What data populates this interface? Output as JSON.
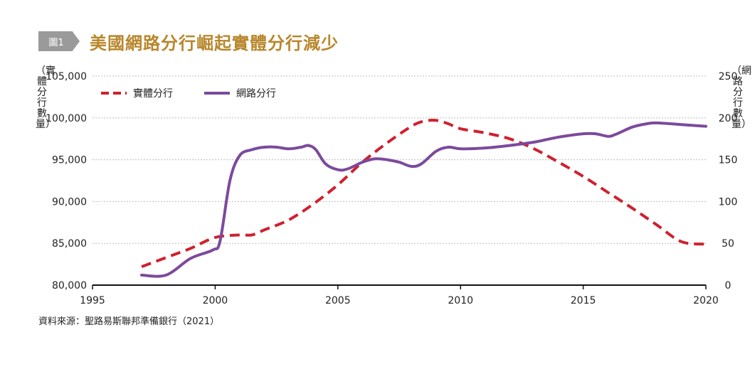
{
  "header": {
    "badge": "圖1",
    "title": "美國網路分行崛起實體分行減少"
  },
  "source": "資料來源：聖路易斯聯邦準備銀行（2021）",
  "chart_data": {
    "type": "line",
    "title": "美國網路分行崛起實體分行減少",
    "ylabel": "（實體分行數量）",
    "y2label": "（網路分行數量）",
    "xlim": [
      1995,
      2020
    ],
    "ylim": [
      80000,
      105000
    ],
    "y2lim": [
      0,
      250
    ],
    "x_ticks": [
      "1995",
      "2000",
      "2005",
      "2010",
      "2015",
      "2020"
    ],
    "y_ticks": [
      "80,000",
      "85,000",
      "90,000",
      "95,000",
      "100,000",
      "105,000"
    ],
    "y2_ticks": [
      "0",
      "50",
      "100",
      "150",
      "200",
      "250"
    ],
    "grid": true,
    "legend": "top-left",
    "series": [
      {
        "name": "實體分行",
        "axis": "left",
        "color": "#d0202e",
        "style": "dashed",
        "points": [
          [
            1997,
            82200
          ],
          [
            1998,
            83300
          ],
          [
            1999,
            84400
          ],
          [
            2000,
            85700
          ],
          [
            2001,
            86000
          ],
          [
            2001.5,
            86000
          ],
          [
            2002,
            86600
          ],
          [
            2003,
            87800
          ],
          [
            2004,
            89700
          ],
          [
            2005,
            92000
          ],
          [
            2006,
            94700
          ],
          [
            2007,
            97000
          ],
          [
            2008,
            99000
          ],
          [
            2008.5,
            99600
          ],
          [
            2009,
            99700
          ],
          [
            2009.5,
            99300
          ],
          [
            2010,
            98700
          ],
          [
            2011,
            98200
          ],
          [
            2012,
            97500
          ],
          [
            2013,
            96300
          ],
          [
            2014,
            94700
          ],
          [
            2015,
            93000
          ],
          [
            2016,
            91100
          ],
          [
            2017,
            89200
          ],
          [
            2018,
            87200
          ],
          [
            2019,
            85200
          ],
          [
            2020,
            84900
          ]
        ]
      },
      {
        "name": "網路分行",
        "axis": "right",
        "color": "#7b4a9c",
        "style": "solid",
        "points": [
          [
            1997,
            12
          ],
          [
            1998,
            12
          ],
          [
            1999,
            32
          ],
          [
            1999.9,
            42
          ],
          [
            2000.2,
            53
          ],
          [
            2000.6,
            125
          ],
          [
            2001,
            155
          ],
          [
            2001.5,
            162
          ],
          [
            2002,
            165
          ],
          [
            2002.5,
            165
          ],
          [
            2003,
            163
          ],
          [
            2003.5,
            165
          ],
          [
            2003.8,
            167
          ],
          [
            2004.1,
            162
          ],
          [
            2004.5,
            145
          ],
          [
            2005,
            138
          ],
          [
            2005.4,
            139
          ],
          [
            2006,
            147
          ],
          [
            2006.5,
            151
          ],
          [
            2007,
            150
          ],
          [
            2007.5,
            147
          ],
          [
            2008,
            142
          ],
          [
            2008.4,
            145
          ],
          [
            2009,
            160
          ],
          [
            2009.5,
            165
          ],
          [
            2010,
            163
          ],
          [
            2011,
            164
          ],
          [
            2012,
            167
          ],
          [
            2013,
            171
          ],
          [
            2014,
            177
          ],
          [
            2015,
            181
          ],
          [
            2015.5,
            181
          ],
          [
            2016,
            178
          ],
          [
            2016.3,
            180
          ],
          [
            2017,
            189
          ],
          [
            2017.6,
            193
          ],
          [
            2018,
            194
          ],
          [
            2019,
            192
          ],
          [
            2020,
            190
          ]
        ]
      }
    ]
  }
}
